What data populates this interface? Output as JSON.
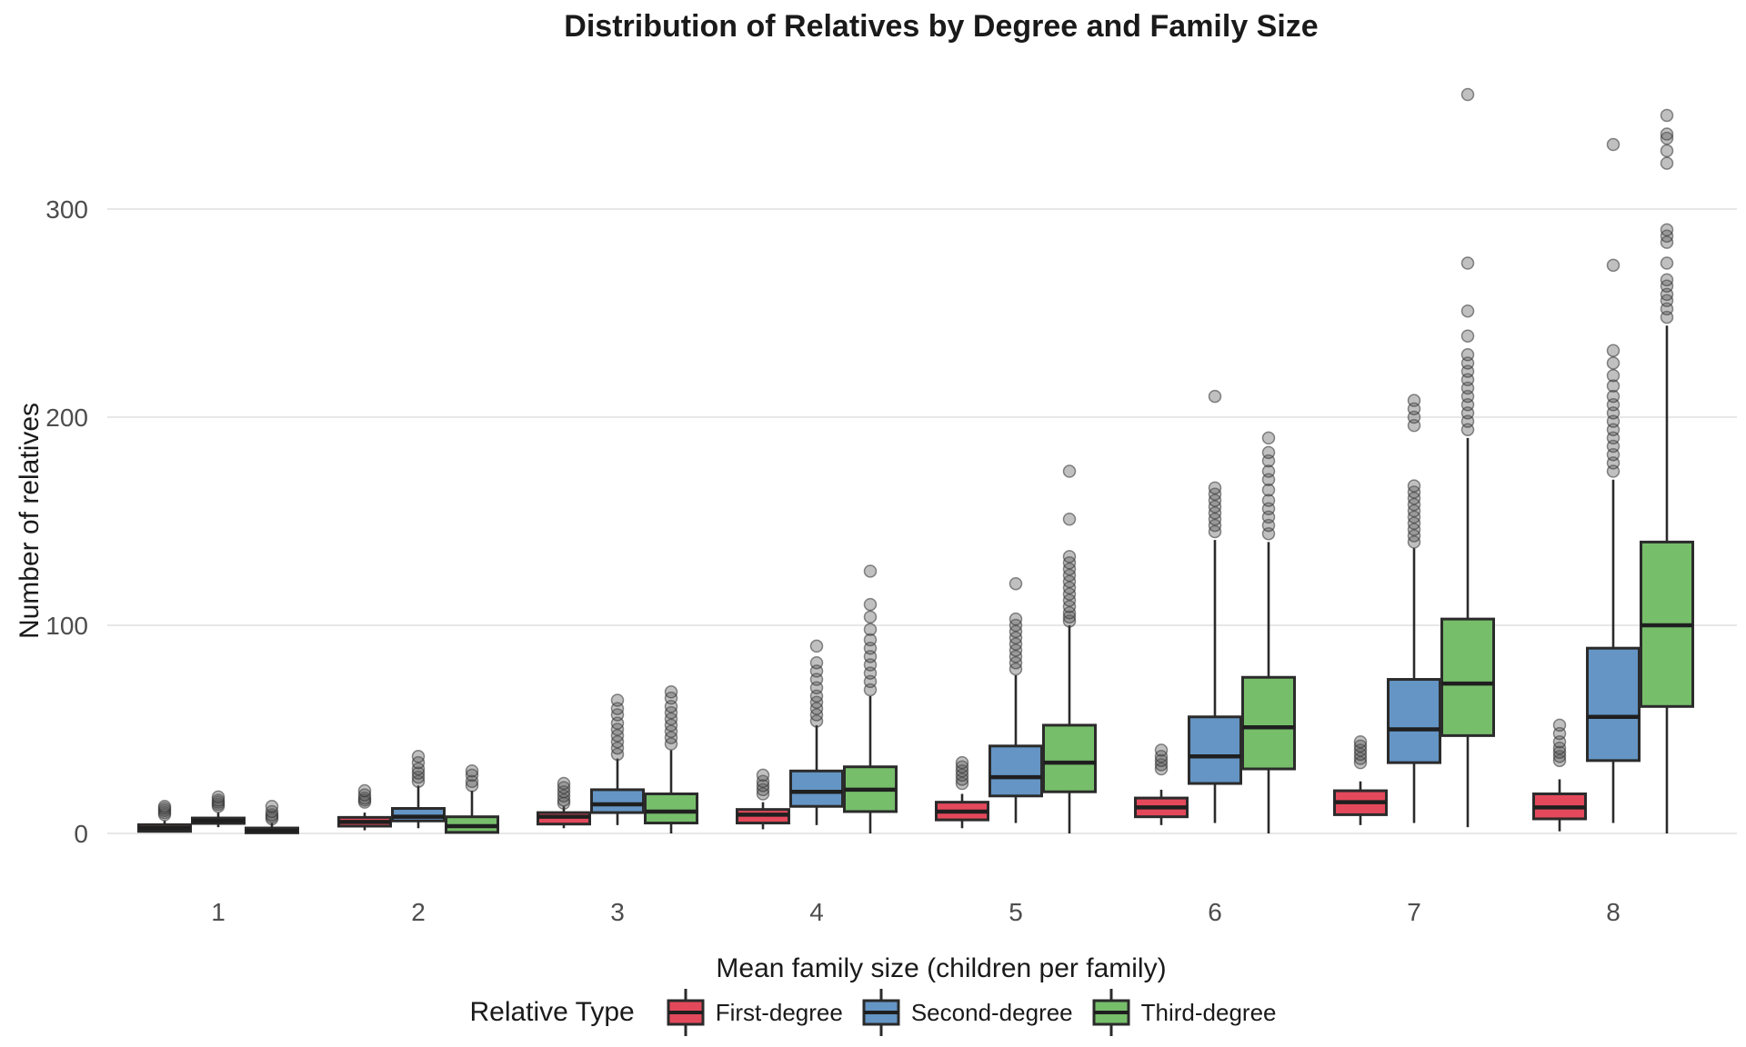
{
  "title": "Distribution of Relatives by Degree and Family Size",
  "axes": {
    "x_label": "Mean family size (children per family)",
    "y_label": "Number of relatives",
    "x_tick_labels": [
      "1",
      "2",
      "3",
      "4",
      "5",
      "6",
      "7",
      "8"
    ],
    "y_tick_labels": [
      "0",
      "100",
      "200",
      "300"
    ],
    "y_tick_values": [
      0,
      100,
      200,
      300
    ]
  },
  "legend": {
    "title": "Relative Type",
    "items": [
      {
        "label": "First-degree",
        "color": "#E4495B"
      },
      {
        "label": "Second-degree",
        "color": "#6495C5"
      },
      {
        "label": "Third-degree",
        "color": "#77BE6B"
      }
    ]
  },
  "colors": {
    "box_border": "#2B2B2B",
    "median": "#1F1F1F",
    "gridline": "#E7E7E7",
    "tick_label": "#4D4D4D",
    "text": "#1A1A1A",
    "outlier_fill": "rgba(90,90,90,0.38)",
    "outlier_stroke": "rgba(45,45,45,0.55)",
    "background": "#FFFFFF"
  },
  "chart_data": {
    "type": "boxplot",
    "title": "Distribution of Relatives by Degree and Family Size",
    "xlabel": "Mean family size (children per family)",
    "ylabel": "Number of relatives",
    "categories": [
      "1",
      "2",
      "3",
      "4",
      "5",
      "6",
      "7",
      "8"
    ],
    "ylim": [
      0,
      362
    ],
    "grid": "horizontal-major-only",
    "legend_position": "bottom",
    "series": [
      {
        "name": "First-degree",
        "color": "#E4495B",
        "boxes": [
          {
            "lo": 0.5,
            "q1": 1,
            "med": 2.5,
            "q3": 4.2,
            "hi": 6,
            "out": [
              9,
              10,
              11,
              12,
              13
            ]
          },
          {
            "lo": 1.5,
            "q1": 3.5,
            "med": 5.5,
            "q3": 7.7,
            "hi": 10,
            "out": [
              15,
              16,
              17,
              18.5,
              20.5
            ]
          },
          {
            "lo": 2.5,
            "q1": 4.5,
            "med": 8,
            "q3": 10,
            "hi": 13,
            "out": [
              14.5,
              16,
              18,
              20,
              22,
              24
            ]
          },
          {
            "lo": 2,
            "q1": 5,
            "med": 9,
            "q3": 11.5,
            "hi": 15,
            "out": [
              19,
              21,
              23,
              25,
              28
            ]
          },
          {
            "lo": 2.5,
            "q1": 6.5,
            "med": 10.5,
            "q3": 15,
            "hi": 19,
            "out": [
              24,
              26,
              28,
              30,
              32,
              34
            ]
          },
          {
            "lo": 4,
            "q1": 8,
            "med": 12.5,
            "q3": 17,
            "hi": 21,
            "out": [
              31,
              33,
              35,
              37,
              40
            ]
          },
          {
            "lo": 4,
            "q1": 9,
            "med": 15,
            "q3": 20.5,
            "hi": 25,
            "out": [
              34,
              36,
              38,
              40,
              42,
              44
            ]
          },
          {
            "lo": 1,
            "q1": 7,
            "med": 12.5,
            "q3": 19,
            "hi": 26,
            "out": [
              35,
              37,
              39,
              41,
              44,
              48,
              52
            ]
          }
        ]
      },
      {
        "name": "Second-degree",
        "color": "#6495C5",
        "boxes": [
          {
            "lo": 3,
            "q1": 4.8,
            "med": 6,
            "q3": 7.4,
            "hi": 10,
            "out": [
              13,
              14,
              15,
              16,
              17.5
            ]
          },
          {
            "lo": 2.5,
            "q1": 6,
            "med": 8,
            "q3": 12,
            "hi": 23,
            "out": [
              25,
              27,
              29,
              31,
              34,
              37
            ]
          },
          {
            "lo": 4,
            "q1": 10,
            "med": 14,
            "q3": 21,
            "hi": 36,
            "out": [
              38,
              41,
              44,
              47,
              50,
              53,
              57,
              60,
              64
            ]
          },
          {
            "lo": 4,
            "q1": 13,
            "med": 20,
            "q3": 30,
            "hi": 52,
            "out": [
              54,
              57,
              60,
              63,
              66,
              70,
              74,
              78,
              82,
              90
            ]
          },
          {
            "lo": 5,
            "q1": 18,
            "med": 27,
            "q3": 42,
            "hi": 76,
            "out": [
              79,
              82,
              85,
              88,
              91,
              94,
              97,
              100,
              103,
              120
            ]
          },
          {
            "lo": 5,
            "q1": 24,
            "med": 37,
            "q3": 56,
            "hi": 141,
            "out": [
              145,
              148,
              151,
              154,
              157,
              160,
              163,
              166,
              210
            ]
          },
          {
            "lo": 5,
            "q1": 34,
            "med": 50,
            "q3": 74,
            "hi": 137,
            "out": [
              140,
              143,
              146,
              149,
              152,
              155,
              158,
              161,
              164,
              167,
              196,
              200,
              204,
              208
            ]
          },
          {
            "lo": 5,
            "q1": 35,
            "med": 56,
            "q3": 89,
            "hi": 170,
            "out": [
              174,
              178,
              182,
              186,
              190,
              194,
              198,
              202,
              206,
              210,
              215,
              220,
              226,
              232,
              273,
              331
            ]
          }
        ]
      },
      {
        "name": "Third-degree",
        "color": "#77BE6B",
        "boxes": [
          {
            "lo": 0,
            "q1": 0.3,
            "med": 1.2,
            "q3": 2.6,
            "hi": 5,
            "out": [
              7,
              8,
              9,
              10.5,
              13
            ]
          },
          {
            "lo": 0,
            "q1": 0.5,
            "med": 3.5,
            "q3": 8,
            "hi": 20.5,
            "out": [
              23,
              25,
              28,
              30
            ]
          },
          {
            "lo": 0,
            "q1": 5,
            "med": 10.5,
            "q3": 19,
            "hi": 40,
            "out": [
              43,
              46,
              49,
              52,
              55,
              58,
              61,
              65,
              68
            ]
          },
          {
            "lo": 0,
            "q1": 10.5,
            "med": 21,
            "q3": 32,
            "hi": 66,
            "out": [
              69,
              73,
              77,
              81,
              85,
              89,
              93,
              98,
              104,
              110,
              126
            ]
          },
          {
            "lo": 0,
            "q1": 20,
            "med": 34,
            "q3": 52,
            "hi": 100,
            "out": [
              102,
              104,
              106,
              109,
              112,
              115,
              118,
              121,
              124,
              127,
              130,
              133,
              151,
              174
            ]
          },
          {
            "lo": 0,
            "q1": 31,
            "med": 51,
            "q3": 75,
            "hi": 140,
            "out": [
              144,
              148,
              152,
              156,
              160,
              165,
              170,
              174,
              179,
              183,
              190
            ]
          },
          {
            "lo": 3,
            "q1": 47,
            "med": 72,
            "q3": 103,
            "hi": 190,
            "out": [
              194,
              198,
              202,
              206,
              210,
              214,
              218,
              222,
              226,
              230,
              239,
              251,
              274,
              355
            ]
          },
          {
            "lo": 0,
            "q1": 61,
            "med": 100,
            "q3": 140,
            "hi": 244,
            "out": [
              248,
              252,
              256,
              259,
              263,
              266,
              274,
              284,
              287,
              290,
              322,
              328,
              334,
              336,
              345
            ]
          }
        ]
      }
    ]
  }
}
